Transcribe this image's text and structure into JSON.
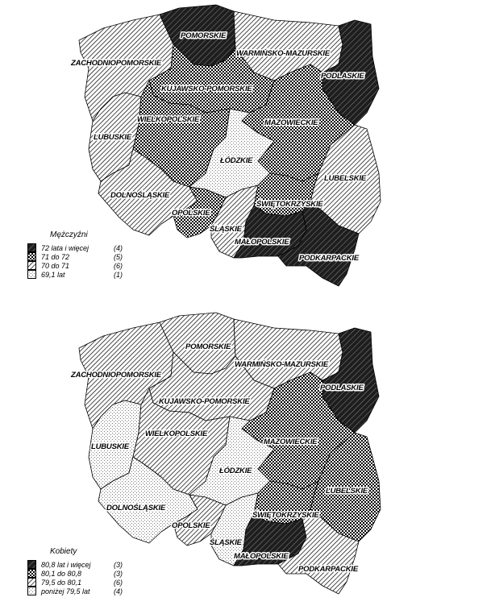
{
  "maps": [
    {
      "id": "men",
      "legend": {
        "title": "Mężczyźni",
        "entries": [
          {
            "class": "p1",
            "range": "72   lata i więcej",
            "count": "(4)"
          },
          {
            "class": "p2",
            "range": "71   do 72",
            "count": "(5)"
          },
          {
            "class": "p3",
            "range": "70   do 71",
            "count": "(6)"
          },
          {
            "class": "p4",
            "range": "69,1 lat",
            "count": "(1)"
          }
        ]
      },
      "regions": {
        "pomorskie": {
          "label": "POMORSKIE",
          "class": "p1"
        },
        "warminsko_mazurskie": {
          "label": "WARMIŃSKO-MAZURSKIE",
          "class": "p3"
        },
        "zachodniopomorskie": {
          "label": "ZACHODNIOPOMORSKIE",
          "class": "p3"
        },
        "podlaskie": {
          "label": "PODLASKIE",
          "class": "p1"
        },
        "kujawsko_pomorskie": {
          "label": "KUJAWSKO-POMORSKIE",
          "class": "p2"
        },
        "wielkopolskie": {
          "label": "WIELKOPOLSKIE",
          "class": "p2"
        },
        "mazowieckie": {
          "label": "MAZOWIECKIE",
          "class": "p2"
        },
        "lubuskie": {
          "label": "LUBUSKIE",
          "class": "p3"
        },
        "lodzkie": {
          "label": "ŁÓDZKIE",
          "class": "p4"
        },
        "lubelskie": {
          "label": "LUBELSKIE",
          "class": "p3"
        },
        "dolnoslaskie": {
          "label": "DOLNOŚLĄSKIE",
          "class": "p3"
        },
        "swietokrzyskie": {
          "label": "ŚWIĘTOKRZYSKIE",
          "class": "p2"
        },
        "opolskie": {
          "label": "OPOLSKIE",
          "class": "p2"
        },
        "slaskie": {
          "label": "ŚLĄSKIE",
          "class": "p3"
        },
        "malopolskie": {
          "label": "MAŁOPOLSKIE",
          "class": "p1"
        },
        "podkarpackie": {
          "label": "PODKARPACKIE",
          "class": "p1"
        }
      }
    },
    {
      "id": "women",
      "legend": {
        "title": "Kobiety",
        "entries": [
          {
            "class": "p1",
            "range": "80,8 lat i więcej",
            "count": "(3)"
          },
          {
            "class": "p2",
            "range": "80,1 do 80,8",
            "count": "(3)"
          },
          {
            "class": "p3",
            "range": "79,5 do 80,1",
            "count": "(6)"
          },
          {
            "class": "p4",
            "range": "poniżej 79,5 lat",
            "count": "(4)"
          }
        ]
      },
      "regions": {
        "pomorskie": {
          "label": "POMORSKIE",
          "class": "p3"
        },
        "warminsko_mazurskie": {
          "label": "WARMIŃSKO-MAZURSKIE",
          "class": "p3"
        },
        "zachodniopomorskie": {
          "label": "ZACHODNIOPOMORSKIE",
          "class": "p3"
        },
        "podlaskie": {
          "label": "PODLASKIE",
          "class": "p1"
        },
        "kujawsko_pomorskie": {
          "label": "KUJAWSKO-POMORSKIE",
          "class": "p3"
        },
        "wielkopolskie": {
          "label": "WIELKOPOLSKIE",
          "class": "p3"
        },
        "mazowieckie": {
          "label": "MAZOWIECKIE",
          "class": "p2"
        },
        "lubuskie": {
          "label": "LUBUSKIE",
          "class": "p4"
        },
        "lodzkie": {
          "label": "ŁÓDZKIE",
          "class": "p4"
        },
        "lubelskie": {
          "label": "LUBELSKIE",
          "class": "p2"
        },
        "dolnoslaskie": {
          "label": "DOLNOŚLĄSKIE",
          "class": "p4"
        },
        "swietokrzyskie": {
          "label": "ŚWIĘTOKRZYSKIE",
          "class": "p2"
        },
        "opolskie": {
          "label": "OPOLSKIE",
          "class": "p3"
        },
        "slaskie": {
          "label": "ŚLĄSKIE",
          "class": "p4"
        },
        "malopolskie": {
          "label": "MAŁOPOLSKIE",
          "class": "p1"
        },
        "podkarpackie": {
          "label": "PODKARPACKIE",
          "class": "p3"
        }
      }
    }
  ]
}
